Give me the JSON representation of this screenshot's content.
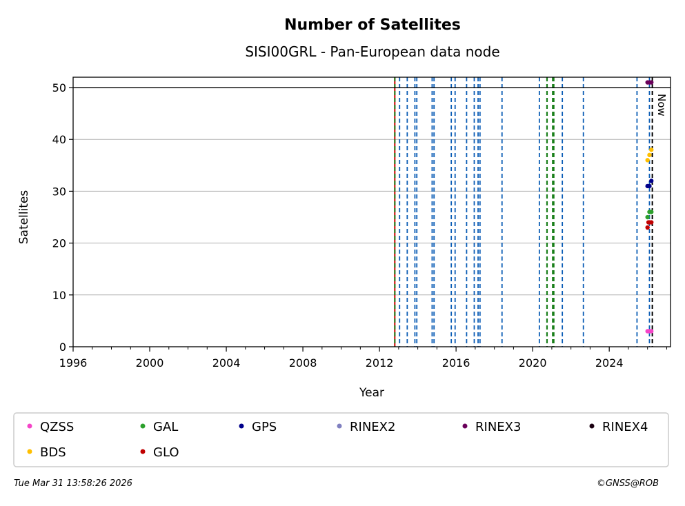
{
  "title": "Number of Satellites",
  "subtitle": "SISI00GRL - Pan-European data node",
  "now_label": "Now",
  "footer": {
    "date": "Tue Mar 31 13:58:26 2026",
    "credit": "©GNSS@ROB"
  },
  "colors": {
    "QZSS": "#f545c8",
    "GAL": "#2ca02c",
    "GPS": "#00008b",
    "RINEX2": "#8080c0",
    "RINEX3": "#6a005a",
    "RINEX4": "#1a0010",
    "BDS": "#ffbf00",
    "GLO": "#c00000",
    "event_blue": "#0a5cb5",
    "event_green": "#1a7f1a",
    "grid": "#b0b0b0"
  },
  "chart_data": {
    "type": "scatter",
    "xlabel": "Year",
    "ylabel": "Satellites",
    "xlim": [
      1996,
      2027.2
    ],
    "ylim": [
      0,
      52
    ],
    "x_ticks": [
      1996,
      2000,
      2004,
      2008,
      2012,
      2016,
      2020,
      2024
    ],
    "y_ticks": [
      0,
      10,
      20,
      30,
      40,
      50
    ],
    "grid": "horizontal",
    "max_line": 50,
    "legend": "bottom",
    "legend_columns": 6,
    "now": 2026.25,
    "start_line": 2012.8,
    "event_lines_blue": [
      2013.05,
      2013.45,
      2013.85,
      2013.95,
      2014.75,
      2014.85,
      2015.75,
      2015.95,
      2016.55,
      2016.95,
      2017.15,
      2017.25,
      2018.4,
      2020.35,
      2021.55,
      2022.65,
      2025.45,
      2026.1
    ],
    "event_lines_green": [
      2020.75,
      2021.05,
      2021.1
    ],
    "series": [
      {
        "name": "QZSS",
        "points": [
          [
            2026.0,
            3
          ],
          [
            2026.1,
            3
          ],
          [
            2026.2,
            3
          ]
        ]
      },
      {
        "name": "GAL",
        "points": [
          [
            2026.0,
            25
          ],
          [
            2026.1,
            26
          ],
          [
            2026.2,
            26
          ]
        ]
      },
      {
        "name": "GPS",
        "points": [
          [
            2026.0,
            31
          ],
          [
            2026.1,
            31
          ],
          [
            2026.2,
            32
          ]
        ]
      },
      {
        "name": "RINEX2",
        "points": []
      },
      {
        "name": "RINEX3",
        "points": [
          [
            2026.0,
            51
          ],
          [
            2026.1,
            51
          ],
          [
            2026.2,
            51
          ]
        ]
      },
      {
        "name": "RINEX4",
        "points": []
      },
      {
        "name": "BDS",
        "points": [
          [
            2026.0,
            36
          ],
          [
            2026.1,
            37
          ],
          [
            2026.2,
            38
          ]
        ]
      },
      {
        "name": "GLO",
        "points": [
          [
            2026.0,
            23
          ],
          [
            2026.05,
            24
          ],
          [
            2026.1,
            24
          ],
          [
            2026.2,
            24
          ]
        ]
      }
    ]
  }
}
